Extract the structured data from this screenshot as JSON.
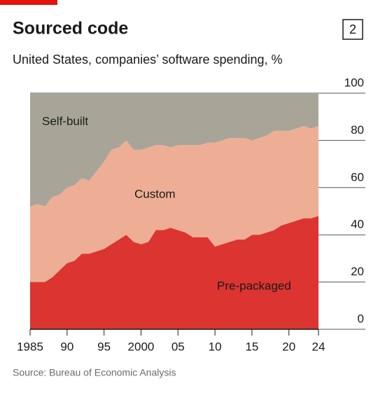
{
  "chart_data": {
    "type": "stacked-area",
    "title": "Sourced code",
    "badge": "2",
    "subtitle": "United States, companies’ software spending, %",
    "source": "Source: Bureau of Economic Analysis",
    "x": [
      1985,
      1986,
      1987,
      1988,
      1989,
      1990,
      1991,
      1992,
      1993,
      1994,
      1995,
      1996,
      1997,
      1998,
      1999,
      2000,
      2001,
      2002,
      2003,
      2004,
      2005,
      2006,
      2007,
      2008,
      2009,
      2010,
      2011,
      2012,
      2013,
      2014,
      2015,
      2016,
      2017,
      2018,
      2019,
      2020,
      2021,
      2022,
      2023,
      2024
    ],
    "series": [
      {
        "name": "Pre-packaged",
        "color": "#dc3430",
        "values": [
          20,
          20,
          20,
          22,
          25,
          28,
          29,
          32,
          32,
          33,
          34,
          36,
          38,
          40,
          37,
          36,
          37,
          42,
          42,
          43,
          42,
          41,
          39,
          39,
          39,
          35,
          36,
          37,
          38,
          38,
          40,
          40,
          41,
          42,
          44,
          45,
          46,
          47,
          47,
          48
        ]
      },
      {
        "name": "Custom",
        "color": "#eeae95",
        "values": [
          32,
          33,
          32,
          34,
          32,
          32,
          32,
          32,
          31,
          34,
          37,
          40,
          39,
          40,
          39,
          40,
          40,
          36,
          36,
          34,
          36,
          37,
          39,
          39,
          40,
          44,
          44,
          44,
          43,
          43,
          40,
          41,
          41,
          42,
          40,
          39,
          39,
          39,
          38,
          38
        ]
      },
      {
        "name": "Self-built",
        "color": "#a8a598",
        "values": [
          48,
          47,
          48,
          44,
          43,
          40,
          39,
          36,
          37,
          33,
          29,
          24,
          23,
          20,
          24,
          24,
          23,
          22,
          22,
          23,
          22,
          22,
          22,
          22,
          21,
          21,
          20,
          19,
          19,
          19,
          20,
          19,
          18,
          16,
          16,
          16,
          15,
          14,
          15,
          14
        ]
      }
    ],
    "xlim": [
      1985,
      2024
    ],
    "xticks": [
      1985,
      {
        "value": 1990,
        "label": "90"
      },
      {
        "value": 1995,
        "label": "95"
      },
      2000,
      {
        "value": 2005,
        "label": "05"
      },
      {
        "value": 2010,
        "label": "10"
      },
      {
        "value": 2015,
        "label": "15"
      },
      {
        "value": 2020,
        "label": "20"
      },
      {
        "value": 2024,
        "label": "24"
      }
    ],
    "ylim": [
      0,
      100
    ],
    "yticks": [
      0,
      20,
      40,
      60,
      80,
      100
    ],
    "grid": true
  }
}
